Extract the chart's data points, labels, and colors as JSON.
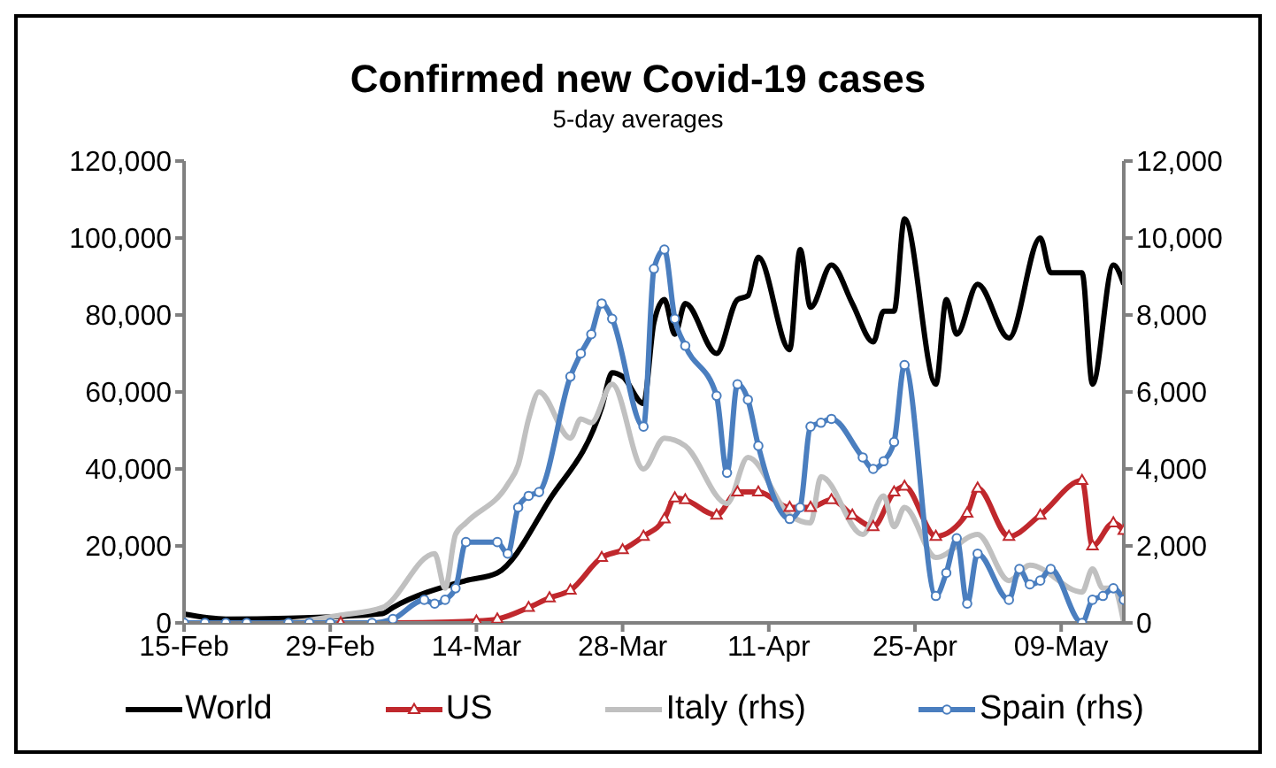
{
  "chart_data": {
    "type": "line",
    "title": "Confirmed new Covid-19 cases",
    "subtitle": "5-day averages",
    "xlim": [
      "--02-15",
      "--05-15"
    ],
    "xticks": [
      {
        "value": "--02-15",
        "label": "15-Feb"
      },
      {
        "value": "--02-29",
        "label": "29-Feb"
      },
      {
        "value": "--03-14",
        "label": "14-Mar"
      },
      {
        "value": "--03-28",
        "label": "28-Mar"
      },
      {
        "value": "--04-11",
        "label": "11-Apr"
      },
      {
        "value": "--04-25",
        "label": "25-Apr"
      },
      {
        "value": "--05-09",
        "label": "09-May"
      }
    ],
    "ylim": [
      0,
      120000
    ],
    "yticks": [
      {
        "value": 0,
        "label": "0"
      },
      {
        "value": 20000,
        "label": "20,000"
      },
      {
        "value": 40000,
        "label": "40,000"
      },
      {
        "value": 60000,
        "label": "60,000"
      },
      {
        "value": 80000,
        "label": "80,000"
      },
      {
        "value": 100000,
        "label": "100,000"
      },
      {
        "value": 120000,
        "label": "120,000"
      }
    ],
    "y2lim": [
      0,
      12000
    ],
    "y2ticks": [
      {
        "value": 0,
        "label": "0"
      },
      {
        "value": 2000,
        "label": "2,000"
      },
      {
        "value": 4000,
        "label": "4,000"
      },
      {
        "value": 6000,
        "label": "6,000"
      },
      {
        "value": 8000,
        "label": "8,000"
      },
      {
        "value": 10000,
        "label": "10,000"
      },
      {
        "value": 12000,
        "label": "12,000"
      }
    ],
    "grid": false,
    "legend": "bottom",
    "line_style": "solid",
    "series": [
      {
        "name": "World",
        "color": "#000000",
        "marker": "none",
        "x": [
          "--02-15",
          "--02-19",
          "--02-25",
          "--03-05",
          "--03-06",
          "--03-13",
          "--03-16",
          "--03-21",
          "--03-26",
          "--03-27",
          "--03-28",
          "--03-30",
          "--03-31",
          "--04-01",
          "--04-02",
          "--04-03",
          "--04-06",
          "--04-08",
          "--04-09",
          "--04-10",
          "--04-13",
          "--04-14",
          "--04-15",
          "--04-17",
          "--04-19",
          "--04-21",
          "--04-22",
          "--04-23",
          "--04-24",
          "--04-27",
          "--04-28",
          "--04-29",
          "--05-01",
          "--05-04",
          "--05-07",
          "--05-08",
          "--05-11",
          "--05-12",
          "--05-14",
          "--05-15"
        ],
        "values": [
          2300,
          1000,
          1200,
          2400,
          4000,
          11000,
          13000,
          32000,
          56000,
          65000,
          64000,
          57000,
          78000,
          84000,
          75000,
          83000,
          70000,
          84000,
          85000,
          95000,
          71000,
          97000,
          82000,
          93000,
          83000,
          73000,
          81000,
          81000,
          105000,
          62000,
          84000,
          75000,
          88000,
          74000,
          100000,
          91000,
          91000,
          62000,
          93000,
          88000
        ]
      },
      {
        "name": "US",
        "color": "#c0282d",
        "marker": "triangle",
        "x": [
          "--03-01",
          "--03-06",
          "--03-14",
          "--03-16",
          "--03-19",
          "--03-21",
          "--03-23",
          "--03-26",
          "--03-28",
          "--03-30",
          "--04-01",
          "--04-02",
          "--04-03",
          "--04-06",
          "--04-08",
          "--04-10",
          "--04-13",
          "--04-15",
          "--04-17",
          "--04-19",
          "--04-21",
          "--04-23",
          "--04-24",
          "--04-27",
          "--04-30",
          "--05-01",
          "--05-04",
          "--05-07",
          "--05-11",
          "--05-12",
          "--05-14",
          "--05-15"
        ],
        "values": [
          0,
          0,
          500,
          1000,
          4000,
          6500,
          8500,
          17000,
          19000,
          22500,
          27000,
          32500,
          32000,
          28000,
          34000,
          34000,
          30000,
          30000,
          32000,
          28000,
          25000,
          34000,
          35500,
          22500,
          28500,
          35000,
          22500,
          28000,
          37000,
          20000,
          26000,
          24000
        ]
      },
      {
        "name": "Italy (rhs)",
        "color": "#c0c0c0",
        "marker": "none",
        "axis": "y2",
        "x": [
          "--02-15",
          "--02-24",
          "--03-01",
          "--03-05",
          "--03-10",
          "--03-11",
          "--03-12",
          "--03-13",
          "--03-17",
          "--03-18",
          "--03-19",
          "--03-20",
          "--03-23",
          "--03-24",
          "--03-25",
          "--03-27",
          "--03-30",
          "--04-01",
          "--04-03",
          "--04-07",
          "--04-09",
          "--04-13",
          "--04-15",
          "--04-16",
          "--04-20",
          "--04-22",
          "--04-23",
          "--04-24",
          "--04-27",
          "--05-01",
          "--05-04",
          "--05-06",
          "--05-11",
          "--05-12",
          "--05-13",
          "--05-14",
          "--05-15"
        ],
        "values": [
          0,
          0,
          200,
          400,
          1800,
          900,
          2300,
          2600,
          3600,
          4100,
          5300,
          6000,
          4800,
          5300,
          5200,
          6200,
          4000,
          4800,
          4600,
          3100,
          4300,
          2800,
          2600,
          3800,
          2300,
          3300,
          2500,
          3000,
          1700,
          2300,
          1100,
          1500,
          800,
          1400,
          900,
          900,
          0
        ]
      },
      {
        "name": "Spain (rhs)",
        "color": "#4a7ebf",
        "marker": "circle",
        "axis": "y2",
        "x": [
          "--02-15",
          "--02-17",
          "--02-19",
          "--02-21",
          "--02-25",
          "--02-27",
          "--02-29",
          "--03-04",
          "--03-06",
          "--03-09",
          "--03-10",
          "--03-11",
          "--03-12",
          "--03-13",
          "--03-16",
          "--03-17",
          "--03-18",
          "--03-19",
          "--03-20",
          "--03-23",
          "--03-24",
          "--03-25",
          "--03-26",
          "--03-27",
          "--03-30",
          "--03-31",
          "--04-01",
          "--04-02",
          "--04-03",
          "--04-06",
          "--04-07",
          "--04-08",
          "--04-09",
          "--04-10",
          "--04-13",
          "--04-14",
          "--04-15",
          "--04-16",
          "--04-17",
          "--04-20",
          "--04-21",
          "--04-22",
          "--04-23",
          "--04-24",
          "--04-27",
          "--04-28",
          "--04-29",
          "--04-30",
          "--05-01",
          "--05-04",
          "--05-05",
          "--05-06",
          "--05-07",
          "--05-08",
          "--05-11",
          "--05-12",
          "--05-13",
          "--05-14",
          "--05-15"
        ],
        "values": [
          0,
          0,
          0,
          0,
          0,
          0,
          0,
          0,
          100,
          600,
          500,
          600,
          900,
          2100,
          2100,
          1800,
          3000,
          3300,
          3400,
          6400,
          7000,
          7500,
          8300,
          7900,
          5100,
          9200,
          9700,
          7900,
          7200,
          5900,
          3900,
          6200,
          5800,
          4600,
          2700,
          3000,
          5100,
          5200,
          5300,
          4300,
          4000,
          4200,
          4700,
          6700,
          700,
          1300,
          2200,
          500,
          1800,
          600,
          1400,
          1000,
          1100,
          1400,
          0,
          600,
          700,
          900,
          600
        ]
      }
    ]
  }
}
